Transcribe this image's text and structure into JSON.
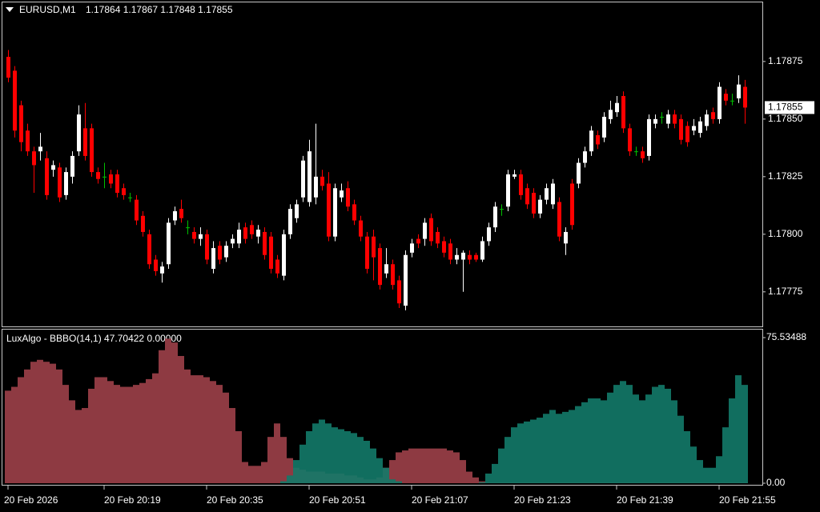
{
  "chart_data": [
    {
      "type": "candlestick",
      "title": "EURUSD,M1",
      "subtitle": "1.17864 1.17867 1.17848 1.17855",
      "up_color": "#ffffff",
      "down_color": "#ff0000",
      "doji_color": "#00c000",
      "open": [
        1.17877,
        1.17871,
        1.17856,
        1.17845,
        1.17836,
        1.17836,
        1.17833,
        1.17828,
        1.17829,
        1.17817,
        1.17825,
        1.17836,
        1.17846,
        1.17846,
        1.17827,
        1.17825,
        1.17826,
        1.17826,
        1.1782,
        1.17816,
        1.17815,
        1.17808,
        1.178,
        1.17789,
        1.17783,
        1.17787,
        1.17806,
        1.17811,
        1.17803,
        1.17801,
        1.17798,
        1.178,
        1.17785,
        1.17795,
        1.1779,
        1.17796,
        1.17796,
        1.17803,
        1.17804,
        1.17799,
        1.17801,
        1.17799,
        1.17789,
        1.17782,
        1.178,
        1.17807,
        1.17816,
        1.17814,
        1.17816,
        1.17825,
        1.17822,
        1.17799,
        1.17816,
        1.1782,
        1.17813,
        1.17806,
        1.17799,
        1.17799,
        1.17794,
        1.17783,
        1.17787,
        1.1778,
        1.17769,
        1.17792,
        1.17798,
        1.17798,
        1.17807,
        1.17801,
        1.17797,
        1.17796,
        1.17789,
        1.17789,
        1.17791,
        1.17791,
        1.17789,
        1.17797,
        1.17803,
        1.17811,
        1.17812,
        1.17825,
        1.17826,
        1.1782,
        1.17818,
        1.17809,
        1.17815,
        1.17813,
        1.17814,
        1.17796,
        1.17822,
        1.17822,
        1.17831,
        1.17836,
        1.17843,
        1.17842,
        1.1785,
        1.17853,
        1.1786,
        1.17846,
        1.17836,
        1.17836,
        1.17834,
        1.17848,
        1.17851,
        1.17848,
        1.17852,
        1.1785,
        1.17847,
        1.17845,
        1.17844,
        1.17847,
        1.17853,
        1.1785,
        1.17861,
        1.17858,
        1.17859,
        1.17864
      ],
      "high": [
        1.1788,
        1.17873,
        1.17858,
        1.17848,
        1.17838,
        1.17844,
        1.17836,
        1.17832,
        1.17831,
        1.17829,
        1.17836,
        1.17856,
        1.17857,
        1.17848,
        1.17829,
        1.17831,
        1.17828,
        1.17828,
        1.17822,
        1.17818,
        1.17817,
        1.1781,
        1.17802,
        1.17791,
        1.17788,
        1.17807,
        1.17812,
        1.17815,
        1.17806,
        1.17803,
        1.17803,
        1.17802,
        1.17797,
        1.17797,
        1.17797,
        1.178,
        1.17805,
        1.17805,
        1.17806,
        1.17804,
        1.17803,
        1.17801,
        1.17791,
        1.17802,
        1.17813,
        1.17815,
        1.17834,
        1.17841,
        1.17848,
        1.17828,
        1.17827,
        1.17822,
        1.17822,
        1.17823,
        1.17815,
        1.17808,
        1.17801,
        1.17802,
        1.17796,
        1.17794,
        1.17789,
        1.17782,
        1.17793,
        1.17798,
        1.178,
        1.17807,
        1.17809,
        1.17803,
        1.17799,
        1.17798,
        1.17794,
        1.17793,
        1.17793,
        1.17792,
        1.17799,
        1.17805,
        1.17814,
        1.17813,
        1.17828,
        1.17828,
        1.17828,
        1.17822,
        1.1782,
        1.17817,
        1.17822,
        1.17824,
        1.17816,
        1.17803,
        1.17824,
        1.17833,
        1.17838,
        1.17847,
        1.17845,
        1.17853,
        1.17858,
        1.1786,
        1.17862,
        1.17848,
        1.17838,
        1.17838,
        1.17852,
        1.17852,
        1.17853,
        1.17854,
        1.17854,
        1.17852,
        1.17849,
        1.1785,
        1.17851,
        1.17854,
        1.17855,
        1.17866,
        1.17863,
        1.17861,
        1.17869,
        1.17867
      ],
      "low": [
        1.17866,
        1.17842,
        1.17836,
        1.17834,
        1.17818,
        1.17832,
        1.17815,
        1.17825,
        1.17814,
        1.17815,
        1.17822,
        1.17834,
        1.17832,
        1.17825,
        1.17822,
        1.1782,
        1.1782,
        1.17816,
        1.17815,
        1.17814,
        1.17804,
        1.17799,
        1.17785,
        1.17782,
        1.17779,
        1.17785,
        1.17804,
        1.17805,
        1.178,
        1.17796,
        1.17795,
        1.17787,
        1.17783,
        1.17787,
        1.17788,
        1.17794,
        1.17794,
        1.17796,
        1.17798,
        1.17796,
        1.17789,
        1.17783,
        1.17781,
        1.1778,
        1.17798,
        1.17805,
        1.17814,
        1.17812,
        1.17813,
        1.17819,
        1.17797,
        1.17797,
        1.17814,
        1.1781,
        1.17804,
        1.17797,
        1.17783,
        1.1778,
        1.17776,
        1.17781,
        1.17776,
        1.17768,
        1.17767,
        1.1779,
        1.17794,
        1.17795,
        1.17795,
        1.17794,
        1.1779,
        1.17787,
        1.17787,
        1.17775,
        1.17787,
        1.17788,
        1.17788,
        1.17795,
        1.17801,
        1.17808,
        1.1781,
        1.17824,
        1.17815,
        1.17811,
        1.17807,
        1.17807,
        1.17813,
        1.17811,
        1.17797,
        1.17791,
        1.17802,
        1.1782,
        1.17829,
        1.17834,
        1.17837,
        1.1784,
        1.17848,
        1.17851,
        1.17844,
        1.17834,
        1.17834,
        1.17831,
        1.17832,
        1.17846,
        1.17848,
        1.17846,
        1.17846,
        1.17839,
        1.17838,
        1.17843,
        1.17842,
        1.17845,
        1.17848,
        1.17848,
        1.17856,
        1.17856,
        1.17857,
        1.17848
      ],
      "close": [
        1.17868,
        1.17845,
        1.1784,
        1.17836,
        1.1783,
        1.17838,
        1.17817,
        1.1783,
        1.17816,
        1.17827,
        1.17834,
        1.17852,
        1.17834,
        1.17827,
        1.17824,
        1.17825,
        1.17822,
        1.17818,
        1.17817,
        1.17816,
        1.17806,
        1.17801,
        1.17787,
        1.17784,
        1.17786,
        1.17805,
        1.1781,
        1.17807,
        1.17803,
        1.17798,
        1.178,
        1.17789,
        1.17794,
        1.17789,
        1.17795,
        1.17798,
        1.17802,
        1.17798,
        1.178,
        1.17802,
        1.17791,
        1.17785,
        1.17783,
        1.178,
        1.17811,
        1.17813,
        1.17832,
        1.17836,
        1.17825,
        1.17821,
        1.17799,
        1.1782,
        1.17819,
        1.17812,
        1.17806,
        1.17799,
        1.17785,
        1.1779,
        1.17778,
        1.17787,
        1.17778,
        1.1777,
        1.17791,
        1.17796,
        1.17796,
        1.17805,
        1.17797,
        1.17796,
        1.17792,
        1.17789,
        1.17791,
        1.17792,
        1.17789,
        1.17789,
        1.17797,
        1.17803,
        1.17812,
        1.17811,
        1.17826,
        1.17826,
        1.17817,
        1.17813,
        1.17809,
        1.17815,
        1.1782,
        1.17822,
        1.17799,
        1.17801,
        1.17804,
        1.17831,
        1.17836,
        1.17845,
        1.17839,
        1.17851,
        1.17854,
        1.17857,
        1.17846,
        1.17836,
        1.17836,
        1.17833,
        1.1785,
        1.1785,
        1.17851,
        1.17852,
        1.17848,
        1.17841,
        1.1784,
        1.17847,
        1.17849,
        1.17852,
        1.1785,
        1.17864,
        1.17858,
        1.17858,
        1.17865,
        1.17855
      ],
      "ylim": [
        1.1776,
        1.17901
      ],
      "yticks": [
        {
          "value": 1.17875,
          "label": "1.17875"
        },
        {
          "value": 1.1785,
          "label": "1.17850"
        },
        {
          "value": 1.17825,
          "label": "1.17825"
        },
        {
          "value": 1.178,
          "label": "1.17800"
        },
        {
          "value": 1.17775,
          "label": "1.17775"
        }
      ],
      "current_price": {
        "value": 1.17855,
        "label": "1.17855"
      },
      "xticks": [
        {
          "value": 0,
          "label": "20 Feb 2026"
        },
        {
          "value": 15,
          "label": "20 Feb 20:19"
        },
        {
          "value": 31,
          "label": "20 Feb 20:35"
        },
        {
          "value": 47,
          "label": "20 Feb 20:51"
        },
        {
          "value": 63,
          "label": "20 Feb 21:07"
        },
        {
          "value": 79,
          "label": "20 Feb 21:23"
        },
        {
          "value": 95,
          "label": "20 Feb 21:39"
        },
        {
          "value": 111,
          "label": "20 Feb 21:55"
        }
      ]
    },
    {
      "type": "area-columns",
      "title": "LuxAlgo - BBBO(14,1) 47.70422 0.00000",
      "ylim": [
        0,
        75.53488
      ],
      "yticks": [
        {
          "value": 75.53488,
          "label": "75.53488"
        },
        {
          "value": 0,
          "label": "0.00"
        }
      ],
      "series": [
        {
          "color": "#8e3a42",
          "values": [
            48,
            50,
            55,
            59,
            63,
            64,
            63,
            62,
            59,
            51,
            43,
            38,
            39,
            49,
            55,
            55,
            53,
            51,
            50,
            50,
            51,
            52,
            54,
            57,
            69,
            75,
            73,
            66,
            59,
            56,
            56,
            55,
            53,
            51,
            47,
            39,
            27,
            11,
            9,
            9,
            11,
            24,
            31,
            24,
            13,
            8,
            7,
            6,
            6,
            6,
            5,
            5,
            5,
            4,
            4,
            3,
            2,
            2,
            3,
            8,
            12,
            16,
            17,
            18,
            18,
            18,
            18,
            18,
            18,
            17,
            16,
            12,
            6,
            3,
            1,
            0.4,
            0.4,
            0.4,
            0.4,
            0.4,
            0.4,
            0.4,
            0.4,
            0.4,
            0.4,
            0.4,
            0.4,
            0.4,
            0.4,
            0.4,
            0.4,
            0.4,
            0.4,
            0.4,
            0.4,
            0.4,
            0.4,
            0.4,
            0.4,
            0.4,
            0.4,
            0.4,
            0.4,
            0.4,
            0.4,
            0.4,
            0.4,
            0.4,
            0.4,
            0.4,
            0.4,
            0.4,
            0.4,
            0.4,
            0.4,
            0.4
          ]
        },
        {
          "color": "#137a69",
          "values": [
            0,
            0,
            0,
            0,
            0,
            0,
            0,
            0,
            0,
            0,
            0,
            0,
            0,
            0,
            0,
            0,
            0,
            0,
            0,
            0,
            0,
            0,
            0,
            0,
            0,
            0,
            0,
            0,
            0,
            0,
            0,
            0,
            0,
            0,
            0,
            0,
            0,
            0,
            0,
            0,
            0,
            0,
            0,
            1,
            4,
            12,
            20,
            27,
            31,
            33,
            31,
            29,
            28,
            27,
            26,
            24,
            22,
            18,
            13,
            8,
            2,
            1,
            0,
            0,
            0,
            0,
            0,
            0,
            0,
            0,
            0,
            0,
            0,
            0,
            0.5,
            5,
            10,
            18,
            24,
            29,
            31,
            32,
            33,
            34,
            36,
            38,
            36,
            37,
            38,
            40,
            42,
            44,
            44,
            43,
            47,
            51,
            53,
            51,
            46,
            43,
            46,
            50,
            51,
            49,
            43,
            35,
            27,
            19,
            12,
            8,
            8,
            14,
            29,
            44,
            56,
            51
          ]
        }
      ]
    }
  ]
}
